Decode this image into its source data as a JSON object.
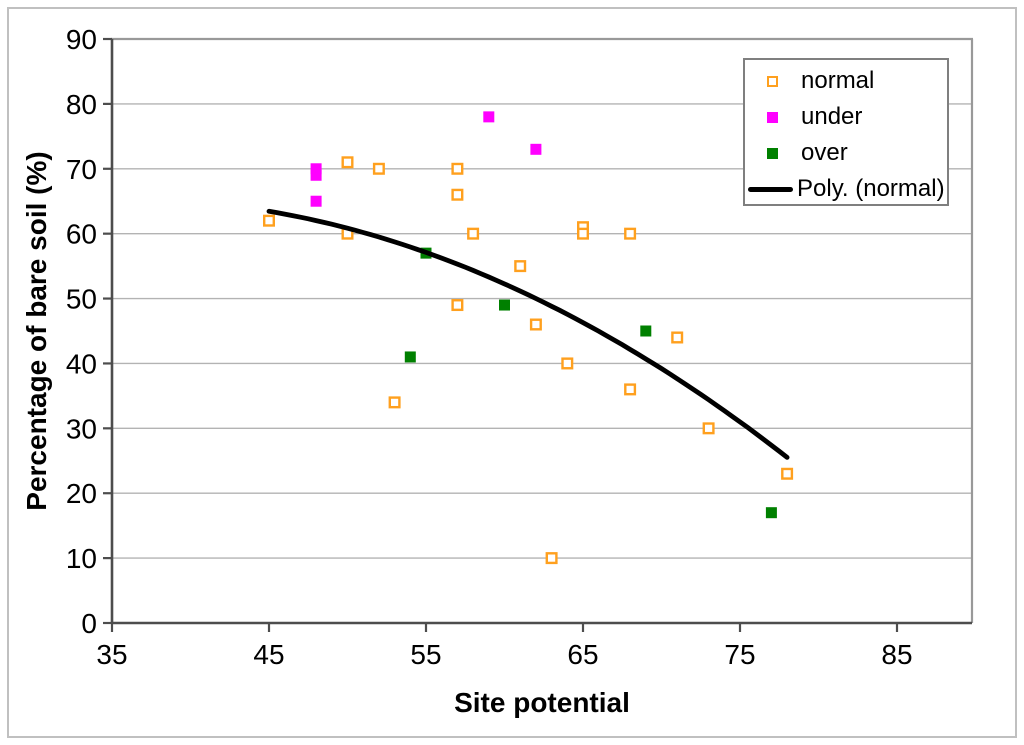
{
  "figure": {
    "background": "#ffffff"
  },
  "chart_data": {
    "type": "scatter",
    "title": "",
    "xlabel": "Site potential",
    "ylabel": "Percentage of bare soil (%)",
    "xlim": [
      35,
      90
    ],
    "ylim": [
      0,
      90
    ],
    "x_ticks": [
      35,
      45,
      55,
      65,
      75,
      85
    ],
    "y_ticks": [
      0,
      10,
      20,
      30,
      40,
      50,
      60,
      70,
      80,
      90
    ],
    "grid": "horizontal-major",
    "legend_position": "top-right",
    "series": [
      {
        "name": "normal",
        "marker": "open-square",
        "color": "#FFA01E",
        "points": [
          [
            45,
            62
          ],
          [
            50,
            71
          ],
          [
            52,
            70
          ],
          [
            57,
            70
          ],
          [
            57,
            66
          ],
          [
            50,
            60
          ],
          [
            58,
            60
          ],
          [
            65,
            61
          ],
          [
            65,
            60
          ],
          [
            68,
            60
          ],
          [
            61,
            55
          ],
          [
            57,
            49
          ],
          [
            62,
            46
          ],
          [
            71,
            44
          ],
          [
            64,
            40
          ],
          [
            68,
            36
          ],
          [
            53,
            34
          ],
          [
            73,
            30
          ],
          [
            78,
            23
          ],
          [
            63,
            10
          ]
        ]
      },
      {
        "name": "under",
        "marker": "filled-square",
        "color": "#FF00FF",
        "points": [
          [
            48,
            70
          ],
          [
            48,
            69
          ],
          [
            48,
            65
          ],
          [
            59,
            78
          ],
          [
            62,
            73
          ]
        ]
      },
      {
        "name": "over",
        "marker": "filled-square",
        "color": "#008000",
        "points": [
          [
            55,
            57
          ],
          [
            54,
            41
          ],
          [
            60,
            49
          ],
          [
            69,
            45
          ],
          [
            77,
            17
          ]
        ]
      }
    ],
    "trendline": {
      "name": "Poly. (normal)",
      "type": "polynomial",
      "order": 2,
      "coefficients": [
        -0.0224,
        1.606,
        36.54
      ],
      "x_range": [
        45,
        78
      ],
      "color": "#000000"
    }
  }
}
